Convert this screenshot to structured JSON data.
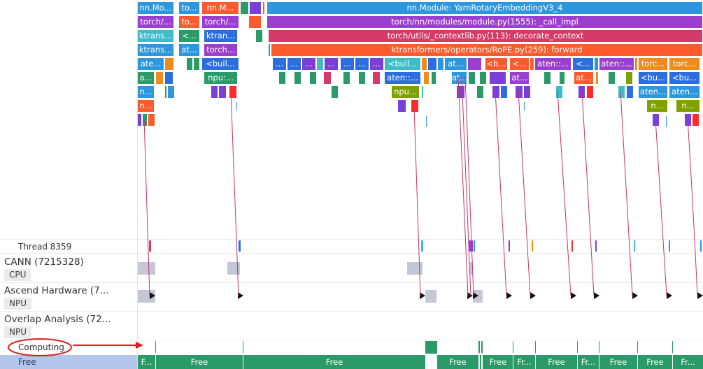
{
  "flame": {
    "row0": {
      "b1": "nn.Mo...",
      "b2": "to...",
      "b3": "nn.M...",
      "main": "nn.Module: YarnRotaryEmbeddingV3_4"
    },
    "row1": {
      "b1": "torch/...",
      "b2": "to...",
      "b3": "torch/...",
      "main": "torch/nn/modules/module.py(1555): _call_impl"
    },
    "row2": {
      "b1": "ktrans...",
      "b2": "<...",
      "b3": "ktran...",
      "main": "torch/utils/_contextlib.py(113): decorate_context"
    },
    "row3": {
      "b1": "ktrans...",
      "b2": "at...",
      "b3": "torch...",
      "main": "ktransformers/operators/RoPE.py(259): forward"
    },
    "row4": {
      "b1": "ate...",
      "b2": "<buil...",
      "dots": "...",
      "b3": "<buil...",
      "b4": "at...",
      "b5": "<b...",
      "b6": "<...",
      "b7": "aten::...",
      "b8": "<...",
      "b9": "aten::...",
      "b10": "torc...",
      "b11": "torc..."
    },
    "row5": {
      "b1": "a...",
      "b2": "npu:...",
      "b3": "aten::...",
      "b4": "at...",
      "b5": "at...",
      "b6": "at...",
      "b7": "<bu...",
      "b8": "<bu..."
    },
    "row6": {
      "b1": "n...",
      "b2": "npu...",
      "b3": "aten...",
      "b4": "aten..."
    },
    "row7": {
      "b1": "n...",
      "b2": "n...",
      "b3": "n..."
    }
  },
  "tracks": {
    "thread": {
      "title": "Thread 8359"
    },
    "cann": {
      "title": "CANN (7215328)",
      "badge": "CPU"
    },
    "ascend": {
      "title": "Ascend Hardware (7...",
      "badge": "NPU"
    },
    "overlap": {
      "title": "Overlap Analysis (72...",
      "badge": "NPU"
    },
    "computing": {
      "title": "Computing"
    },
    "free": {
      "title": "Free",
      "segments": [
        "F...",
        "Free",
        "Free",
        "Free",
        "Free",
        "Fr...",
        "Free",
        "Fr...",
        "Free",
        "Free",
        "Fr..."
      ]
    }
  },
  "colors": {
    "blue": "#2c97de",
    "purple": "#9b3fd0",
    "pink": "#d63a6b",
    "orange_red": "#ff5a2d",
    "green": "#2a9a69",
    "olive": "#7fa100",
    "teal": "#3cbdc8",
    "annotation_red": "#e02020",
    "flow_line": "#c9336b"
  }
}
